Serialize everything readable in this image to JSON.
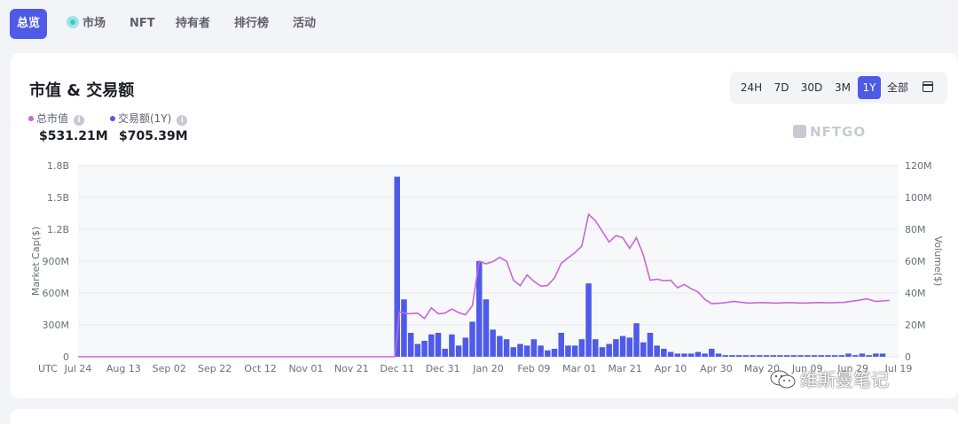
{
  "tabs": [
    {
      "label": "总览",
      "active": true
    },
    {
      "label": "市场",
      "active": false
    },
    {
      "label": "NFT",
      "active": false
    },
    {
      "label": "持有者",
      "active": false
    },
    {
      "label": "排行榜",
      "active": false
    },
    {
      "label": "活动",
      "active": false
    }
  ],
  "card": {
    "title": "市值 & 交易额",
    "ranges": [
      "24H",
      "7D",
      "30D",
      "3M",
      "1Y",
      "全部"
    ],
    "active_range": "1Y",
    "legend": [
      {
        "label": "总市值",
        "value": "$531.21M",
        "color": "#c965dd"
      },
      {
        "label": "交易额(1Y)",
        "value": "$705.39M",
        "color": "#4e5ae8"
      }
    ],
    "watermark": "NFTGO",
    "overlay_watermark": "维斯曼笔记"
  },
  "chart_data": {
    "type": "bar+line",
    "timezone_label": "UTC",
    "x_ticks": [
      "Jul 24",
      "Aug 13",
      "Sep 02",
      "Sep 22",
      "Oct 12",
      "Nov 01",
      "Nov 21",
      "Dec 11",
      "Dec 31",
      "Jan 20",
      "Feb 09",
      "Mar 01",
      "Mar 21",
      "Apr 10",
      "Apr 30",
      "May 20",
      "Jun 09",
      "Jun 29",
      "Jul 19"
    ],
    "y_left": {
      "label": "Market Cap($)",
      "ticks": [
        "0",
        "300M",
        "600M",
        "900M",
        "1.2B",
        "1.5B",
        "1.8B"
      ],
      "max": 1800
    },
    "y_right": {
      "label": "Volume($)",
      "ticks": [
        "0",
        "20M",
        "40M",
        "60M",
        "80M",
        "100M",
        "120M"
      ],
      "max": 120
    },
    "series": [
      {
        "name": "交易额(1Y)",
        "type": "bar",
        "color": "#4e5ae8",
        "unit": "M",
        "points": [
          {
            "day": 140,
            "v": 113
          },
          {
            "day": 143,
            "v": 36
          },
          {
            "day": 146,
            "v": 15
          },
          {
            "day": 149,
            "v": 8
          },
          {
            "day": 152,
            "v": 10
          },
          {
            "day": 155,
            "v": 14
          },
          {
            "day": 158,
            "v": 15
          },
          {
            "day": 161,
            "v": 5
          },
          {
            "day": 164,
            "v": 14
          },
          {
            "day": 167,
            "v": 7
          },
          {
            "day": 170,
            "v": 12
          },
          {
            "day": 173,
            "v": 22
          },
          {
            "day": 176,
            "v": 60
          },
          {
            "day": 179,
            "v": 36
          },
          {
            "day": 182,
            "v": 17
          },
          {
            "day": 185,
            "v": 13
          },
          {
            "day": 188,
            "v": 11
          },
          {
            "day": 191,
            "v": 6
          },
          {
            "day": 194,
            "v": 8
          },
          {
            "day": 197,
            "v": 7
          },
          {
            "day": 200,
            "v": 11
          },
          {
            "day": 203,
            "v": 7
          },
          {
            "day": 206,
            "v": 4
          },
          {
            "day": 209,
            "v": 5
          },
          {
            "day": 212,
            "v": 15
          },
          {
            "day": 215,
            "v": 7
          },
          {
            "day": 218,
            "v": 7
          },
          {
            "day": 221,
            "v": 11
          },
          {
            "day": 224,
            "v": 46
          },
          {
            "day": 227,
            "v": 11
          },
          {
            "day": 230,
            "v": 6
          },
          {
            "day": 233,
            "v": 8
          },
          {
            "day": 236,
            "v": 11
          },
          {
            "day": 239,
            "v": 13
          },
          {
            "day": 242,
            "v": 12
          },
          {
            "day": 245,
            "v": 21
          },
          {
            "day": 248,
            "v": 9
          },
          {
            "day": 251,
            "v": 15
          },
          {
            "day": 254,
            "v": 7
          },
          {
            "day": 257,
            "v": 5
          },
          {
            "day": 260,
            "v": 3
          },
          {
            "day": 263,
            "v": 2
          },
          {
            "day": 266,
            "v": 2
          },
          {
            "day": 269,
            "v": 2
          },
          {
            "day": 272,
            "v": 3
          },
          {
            "day": 275,
            "v": 2
          },
          {
            "day": 278,
            "v": 5
          },
          {
            "day": 281,
            "v": 2
          },
          {
            "day": 284,
            "v": 1
          },
          {
            "day": 287,
            "v": 1
          },
          {
            "day": 290,
            "v": 1
          },
          {
            "day": 293,
            "v": 1
          },
          {
            "day": 296,
            "v": 1
          },
          {
            "day": 299,
            "v": 1
          },
          {
            "day": 302,
            "v": 1
          },
          {
            "day": 305,
            "v": 1
          },
          {
            "day": 308,
            "v": 1
          },
          {
            "day": 311,
            "v": 1
          },
          {
            "day": 314,
            "v": 1
          },
          {
            "day": 317,
            "v": 1
          },
          {
            "day": 320,
            "v": 1
          },
          {
            "day": 323,
            "v": 1
          },
          {
            "day": 326,
            "v": 1
          },
          {
            "day": 329,
            "v": 1
          },
          {
            "day": 332,
            "v": 1
          },
          {
            "day": 335,
            "v": 1
          },
          {
            "day": 338,
            "v": 2
          },
          {
            "day": 341,
            "v": 1
          },
          {
            "day": 344,
            "v": 2
          },
          {
            "day": 347,
            "v": 1
          },
          {
            "day": 350,
            "v": 2
          },
          {
            "day": 353,
            "v": 2
          }
        ]
      },
      {
        "name": "总市值",
        "type": "line",
        "color": "#c965dd",
        "unit": "M",
        "points": [
          {
            "day": 0,
            "v": 0
          },
          {
            "day": 139,
            "v": 0
          },
          {
            "day": 141,
            "v": 420
          },
          {
            "day": 145,
            "v": 405
          },
          {
            "day": 149,
            "v": 410
          },
          {
            "day": 152,
            "v": 360
          },
          {
            "day": 155,
            "v": 460
          },
          {
            "day": 158,
            "v": 405
          },
          {
            "day": 161,
            "v": 410
          },
          {
            "day": 164,
            "v": 450
          },
          {
            "day": 167,
            "v": 415
          },
          {
            "day": 170,
            "v": 395
          },
          {
            "day": 173,
            "v": 480
          },
          {
            "day": 176,
            "v": 900
          },
          {
            "day": 179,
            "v": 875
          },
          {
            "day": 182,
            "v": 895
          },
          {
            "day": 185,
            "v": 935
          },
          {
            "day": 188,
            "v": 900
          },
          {
            "day": 191,
            "v": 720
          },
          {
            "day": 194,
            "v": 670
          },
          {
            "day": 197,
            "v": 770
          },
          {
            "day": 200,
            "v": 710
          },
          {
            "day": 203,
            "v": 665
          },
          {
            "day": 206,
            "v": 670
          },
          {
            "day": 209,
            "v": 740
          },
          {
            "day": 212,
            "v": 880
          },
          {
            "day": 215,
            "v": 930
          },
          {
            "day": 218,
            "v": 980
          },
          {
            "day": 221,
            "v": 1040
          },
          {
            "day": 224,
            "v": 1340
          },
          {
            "day": 227,
            "v": 1280
          },
          {
            "day": 230,
            "v": 1180
          },
          {
            "day": 233,
            "v": 1080
          },
          {
            "day": 236,
            "v": 1140
          },
          {
            "day": 239,
            "v": 1120
          },
          {
            "day": 242,
            "v": 1020
          },
          {
            "day": 245,
            "v": 1120
          },
          {
            "day": 248,
            "v": 960
          },
          {
            "day": 251,
            "v": 720
          },
          {
            "day": 254,
            "v": 730
          },
          {
            "day": 257,
            "v": 715
          },
          {
            "day": 260,
            "v": 720
          },
          {
            "day": 263,
            "v": 650
          },
          {
            "day": 266,
            "v": 680
          },
          {
            "day": 269,
            "v": 640
          },
          {
            "day": 272,
            "v": 610
          },
          {
            "day": 275,
            "v": 540
          },
          {
            "day": 278,
            "v": 500
          },
          {
            "day": 282,
            "v": 505
          },
          {
            "day": 288,
            "v": 520
          },
          {
            "day": 294,
            "v": 505
          },
          {
            "day": 300,
            "v": 510
          },
          {
            "day": 306,
            "v": 505
          },
          {
            "day": 312,
            "v": 510
          },
          {
            "day": 318,
            "v": 505
          },
          {
            "day": 324,
            "v": 510
          },
          {
            "day": 330,
            "v": 508
          },
          {
            "day": 336,
            "v": 512
          },
          {
            "day": 342,
            "v": 530
          },
          {
            "day": 346,
            "v": 545
          },
          {
            "day": 350,
            "v": 520
          },
          {
            "day": 353,
            "v": 525
          },
          {
            "day": 356,
            "v": 531
          }
        ]
      }
    ],
    "grid": true
  }
}
